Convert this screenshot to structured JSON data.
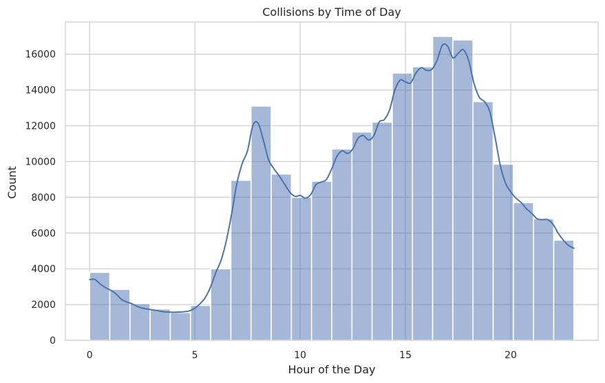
{
  "chart_data": {
    "type": "bar",
    "title": "Collisions by Time of Day",
    "xlabel": "Hour of the Day",
    "ylabel": "Count",
    "xlim": [
      -1.15,
      24.15
    ],
    "ylim": [
      0,
      17800
    ],
    "x_ticks": [
      0,
      5,
      10,
      15,
      20
    ],
    "y_ticks": [
      0,
      2000,
      4000,
      6000,
      8000,
      10000,
      12000,
      14000,
      16000
    ],
    "grid": true,
    "legend": "none",
    "bin_edges": [
      0,
      0.9583,
      1.9167,
      2.875,
      3.8333,
      4.7917,
      5.75,
      6.7083,
      7.6667,
      8.625,
      9.5833,
      10.5417,
      11.5,
      12.4583,
      13.4167,
      14.375,
      15.3333,
      16.2917,
      17.25,
      18.2083,
      19.1667,
      20.125,
      21.0833,
      22.0417,
      23
    ],
    "values": [
      3800,
      2850,
      2050,
      1750,
      1550,
      1950,
      4000,
      8950,
      13100,
      9300,
      8000,
      8900,
      10700,
      11650,
      12200,
      14950,
      15300,
      17000,
      16800,
      13350,
      9850,
      7700,
      6800,
      5600
    ],
    "kde": {
      "x": [
        0,
        0.25,
        0.5,
        0.75,
        1,
        1.25,
        1.5,
        1.75,
        2,
        2.25,
        2.5,
        2.75,
        3,
        3.25,
        3.5,
        3.75,
        4,
        4.25,
        4.5,
        4.75,
        5,
        5.25,
        5.5,
        5.75,
        6,
        6.25,
        6.5,
        6.75,
        7,
        7.25,
        7.5,
        7.75,
        8,
        8.25,
        8.5,
        8.75,
        9,
        9.25,
        9.5,
        9.75,
        10,
        10.25,
        10.5,
        10.75,
        11,
        11.25,
        11.5,
        11.75,
        12,
        12.25,
        12.5,
        12.75,
        13,
        13.25,
        13.5,
        13.75,
        14,
        14.25,
        14.5,
        14.75,
        15,
        15.25,
        15.5,
        15.75,
        16,
        16.25,
        16.5,
        16.75,
        17,
        17.25,
        17.5,
        17.75,
        18,
        18.25,
        18.5,
        18.75,
        19,
        19.25,
        19.5,
        19.75,
        20,
        20.25,
        20.5,
        20.75,
        21,
        21.25,
        21.5,
        21.75,
        22,
        22.25,
        22.5,
        22.75,
        23
      ],
      "y": [
        3400,
        3400,
        3150,
        2950,
        2800,
        2600,
        2300,
        2150,
        2050,
        1900,
        1800,
        1750,
        1700,
        1650,
        1600,
        1580,
        1570,
        1580,
        1600,
        1650,
        1800,
        2050,
        2400,
        3000,
        3800,
        4500,
        5600,
        7100,
        8800,
        9900,
        10600,
        12000,
        12150,
        11200,
        10100,
        9600,
        9200,
        8750,
        8300,
        8050,
        8100,
        7950,
        8150,
        8700,
        8850,
        9000,
        9600,
        10300,
        10600,
        10450,
        10700,
        11300,
        11450,
        11200,
        11450,
        12200,
        12350,
        12900,
        14000,
        14550,
        14450,
        14400,
        14950,
        15250,
        15100,
        15150,
        15650,
        16500,
        16450,
        15800,
        16050,
        16250,
        15650,
        14400,
        13600,
        13350,
        12800,
        11400,
        9800,
        8800,
        8300,
        7950,
        7700,
        7350,
        7100,
        6800,
        6750,
        6750,
        6500,
        6000,
        5600,
        5300,
        5150
      ]
    }
  }
}
